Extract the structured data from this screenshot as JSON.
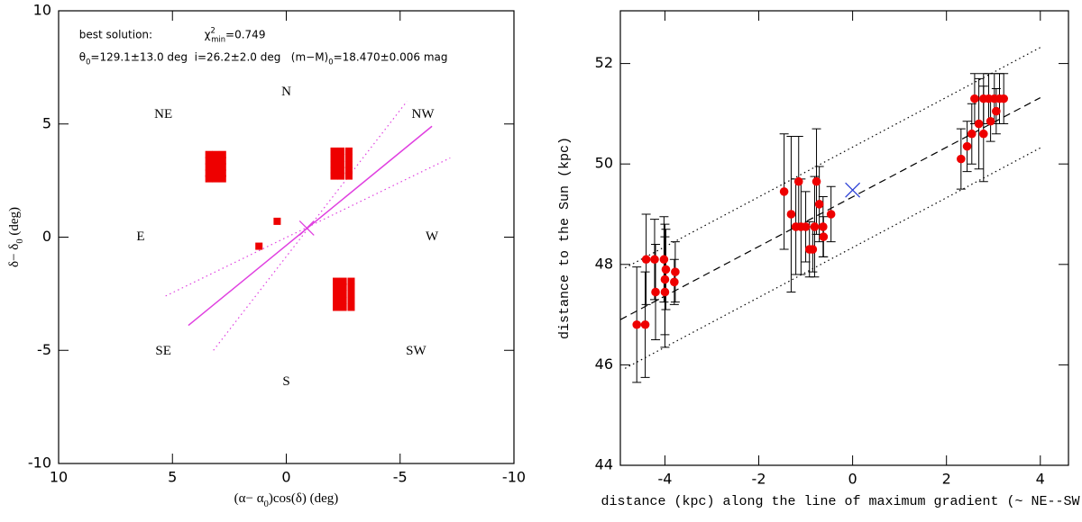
{
  "chart_data": [
    {
      "type": "scatter",
      "xlim": [
        10,
        -10
      ],
      "ylim": [
        -10,
        10
      ],
      "xticks": [
        10,
        5,
        0,
        -5,
        -10
      ],
      "yticks": [
        -10,
        -5,
        0,
        5,
        10
      ],
      "xlabel": [
        {
          "text": "(α− α"
        },
        {
          "text": "0",
          "shift": "sub"
        },
        {
          "text": ")cos(δ) (deg)"
        }
      ],
      "ylabel": [
        {
          "text": "δ− δ"
        },
        {
          "text": "0",
          "shift": "sub"
        },
        {
          "text": " (deg)"
        }
      ],
      "annotations": [
        {
          "x": 9.1,
          "y": 8.95,
          "runs": [
            {
              "text": "best solution:"
            }
          ]
        },
        {
          "x": 3.6,
          "y": 8.95,
          "runs": [
            {
              "text": "χ"
            },
            {
              "text": "2",
              "shift": "super"
            },
            {
              "text": "min",
              "shift": "sub"
            },
            {
              "text": "=0.749"
            }
          ]
        },
        {
          "x": 9.1,
          "y": 7.95,
          "runs": [
            {
              "text": "θ"
            },
            {
              "text": "0",
              "shift": "sub"
            },
            {
              "text": "=129.1±13.0 deg  i=26.2±2.0 deg   (m−M)"
            },
            {
              "text": "0",
              "shift": "sub"
            },
            {
              "text": "=18.470±0.006 mag"
            }
          ]
        }
      ],
      "directions": [
        {
          "text": "N",
          "x": 0,
          "y": 6.4
        },
        {
          "text": "S",
          "x": 0,
          "y": -6.4
        },
        {
          "text": "E",
          "x": 6.4,
          "y": 0
        },
        {
          "text": "W",
          "x": -6.4,
          "y": 0
        },
        {
          "text": "NE",
          "x": 5.4,
          "y": 5.4
        },
        {
          "text": "NW",
          "x": -6.0,
          "y": 5.4
        },
        {
          "text": "SE",
          "x": 5.4,
          "y": -5.05
        },
        {
          "text": "SW",
          "x": -5.7,
          "y": -5.05
        }
      ],
      "series": [
        {
          "color": "#ee0000",
          "marker": "square",
          "x": [
            3.4,
            3.1,
            2.8,
            3.4,
            3.1,
            2.8,
            3.4,
            3.1,
            2.8,
            3.4,
            3.1,
            2.8,
            3.4,
            3.1,
            2.8,
            -2.1,
            -2.4,
            -2.75,
            -2.1,
            -2.4,
            -2.75,
            -2.1,
            -2.4,
            -2.75,
            -2.1,
            -2.4,
            -2.75,
            -2.1,
            -2.4,
            -2.75,
            -2.2,
            -2.5,
            -2.85,
            -2.2,
            -2.5,
            -2.85,
            -2.2,
            -2.5,
            -2.85,
            -2.2,
            -2.5,
            -2.85,
            -2.2,
            -2.5,
            -2.85,
            0.4,
            1.2
          ],
          "y": [
            3.65,
            3.65,
            3.65,
            3.38,
            3.38,
            3.38,
            3.1,
            3.1,
            3.1,
            2.82,
            2.82,
            2.82,
            2.58,
            2.58,
            2.58,
            3.8,
            3.8,
            3.8,
            3.5,
            3.5,
            3.5,
            3.2,
            3.2,
            3.2,
            2.95,
            2.95,
            2.95,
            2.7,
            2.7,
            2.7,
            -1.95,
            -1.95,
            -1.95,
            -2.2,
            -2.2,
            -2.2,
            -2.5,
            -2.5,
            -2.5,
            -2.8,
            -2.8,
            -2.8,
            -3.1,
            -3.1,
            -3.1,
            0.7,
            -0.4
          ]
        }
      ],
      "lines": [
        {
          "color": "#e040e0",
          "style": "solid",
          "x": [
            4.3,
            -6.4
          ],
          "y": [
            -3.9,
            4.9
          ]
        },
        {
          "color": "#e040e0",
          "style": "dotted",
          "x": [
            5.3,
            -7.2
          ],
          "y": [
            -2.6,
            3.5
          ]
        },
        {
          "color": "#e040e0",
          "style": "dotted",
          "x": [
            3.2,
            -5.3
          ],
          "y": [
            -5.0,
            6.0
          ]
        }
      ],
      "cross": {
        "x": -0.9,
        "y": 0.4,
        "color": "#e040e0"
      }
    },
    {
      "type": "errorbar",
      "xlim": [
        -4.95,
        4.6
      ],
      "ylim": [
        44,
        53.05
      ],
      "xticks": [
        -4,
        -2,
        0,
        2,
        4
      ],
      "yticks": [
        44,
        46,
        48,
        50,
        52
      ],
      "xlabel": [
        {
          "text": "distance (kpc) along the line of maximum gradient (~ NE--SW)"
        }
      ],
      "ylabel": [
        {
          "text": "distance to the Sun (kpc)"
        }
      ],
      "series": [
        {
          "color": "#ee0000",
          "x": [
            -4.6,
            -4.42,
            -4.4,
            -4.22,
            -4.2,
            -4.02,
            -4.0,
            -4.0,
            -3.98,
            -3.8,
            -3.78,
            -1.46,
            -1.31,
            -1.21,
            -1.15,
            -1.1,
            -1.0,
            -0.92,
            -0.85,
            -0.81,
            -0.77,
            -0.71,
            -0.63,
            -0.62,
            -0.46,
            2.31,
            2.44,
            2.54,
            2.6,
            2.69,
            2.79,
            2.79,
            2.9,
            2.94,
            3.02,
            3.06,
            3.13,
            3.22
          ],
          "values": [
            46.8,
            46.8,
            48.1,
            48.1,
            47.45,
            48.1,
            47.7,
            47.45,
            47.9,
            47.65,
            47.85,
            49.45,
            49.0,
            48.75,
            49.65,
            48.75,
            48.75,
            48.3,
            48.3,
            48.75,
            49.65,
            49.2,
            48.75,
            48.55,
            49.0,
            50.1,
            50.35,
            50.6,
            51.3,
            50.8,
            51.3,
            50.6,
            51.3,
            50.85,
            51.3,
            51.05,
            51.3,
            51.3
          ],
          "errors": [
            1.15,
            1.05,
            0.9,
            0.8,
            0.95,
            0.85,
            1.1,
            1.1,
            0.8,
            0.45,
            0.6,
            1.15,
            1.55,
            0.95,
            0.9,
            0.95,
            0.7,
            0.55,
            0.45,
            1.0,
            1.05,
            0.75,
            0.6,
            0.4,
            0.55,
            0.6,
            0.5,
            0.6,
            0.5,
            0.9,
            0.5,
            0.95,
            0.5,
            0.4,
            0.5,
            0.45,
            0.5,
            0.5
          ]
        }
      ],
      "lines": [
        {
          "color": "#000000",
          "style": "dashed",
          "x": [
            -4.95,
            4.0
          ],
          "y": [
            46.9,
            51.32
          ]
        },
        {
          "color": "#000000",
          "style": "dotted",
          "x": [
            -4.85,
            4.0
          ],
          "y": [
            47.93,
            52.32
          ]
        },
        {
          "color": "#000000",
          "style": "dotted",
          "x": [
            -4.85,
            4.0
          ],
          "y": [
            45.93,
            50.32
          ]
        }
      ],
      "cross": {
        "x": 0,
        "y": 49.48,
        "color": "#2a3fd6"
      }
    }
  ]
}
